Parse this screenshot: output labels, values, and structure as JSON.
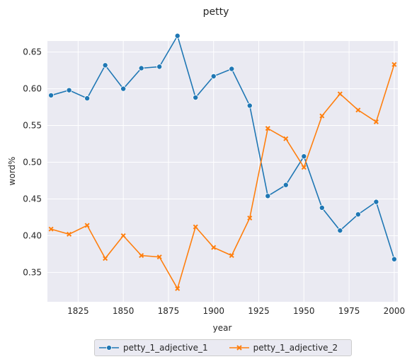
{
  "chart_data": {
    "type": "line",
    "title": "petty",
    "xlabel": "year",
    "ylabel": "word%",
    "x": [
      1810,
      1820,
      1830,
      1840,
      1850,
      1860,
      1870,
      1880,
      1890,
      1900,
      1910,
      1920,
      1930,
      1940,
      1950,
      1960,
      1970,
      1980,
      1990,
      2000
    ],
    "xlim": [
      1808,
      2002
    ],
    "ylim": [
      0.31,
      0.665
    ],
    "xticks": [
      1825,
      1850,
      1875,
      1900,
      1925,
      1950,
      1975,
      2000
    ],
    "xtick_labels": [
      "1825",
      "1850",
      "1875",
      "1900",
      "1925",
      "1950",
      "1975",
      "2000"
    ],
    "yticks": [
      0.35,
      0.4,
      0.45,
      0.5,
      0.55,
      0.6,
      0.65
    ],
    "ytick_labels": [
      "0.35",
      "0.40",
      "0.45",
      "0.50",
      "0.55",
      "0.60",
      "0.65"
    ],
    "grid": true,
    "legend_position": "bottom-center",
    "series": [
      {
        "name": "petty_1_adjective_1",
        "color": "#1f77b4",
        "marker": "circle",
        "values": [
          0.591,
          0.598,
          0.587,
          0.632,
          0.6,
          0.628,
          0.63,
          0.672,
          0.588,
          0.617,
          0.627,
          0.577,
          0.454,
          0.469,
          0.508,
          0.438,
          0.407,
          0.429,
          0.446,
          0.368
        ]
      },
      {
        "name": "petty_1_adjective_2",
        "color": "#ff7f0e",
        "marker": "x",
        "values": [
          0.409,
          0.402,
          0.414,
          0.369,
          0.4,
          0.373,
          0.371,
          0.328,
          0.412,
          0.384,
          0.373,
          0.424,
          0.546,
          0.532,
          0.493,
          0.563,
          0.593,
          0.571,
          0.555,
          0.633
        ]
      }
    ]
  }
}
